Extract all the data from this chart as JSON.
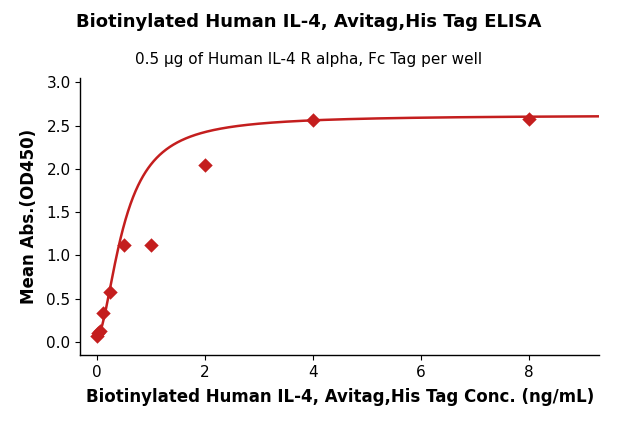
{
  "title": "Biotinylated Human IL-4, Avitag,His Tag ELISA",
  "subtitle": "0.5 μg of Human IL-4 R alpha, Fc Tag per well",
  "xlabel": "Biotinylated Human IL-4, Avitag,His Tag Conc. (ng/mL)",
  "ylabel": "Mean Abs.(OD450)",
  "x_data": [
    0.016,
    0.031,
    0.063,
    0.125,
    0.25,
    0.5,
    1.0,
    2.0,
    4.0,
    8.0
  ],
  "y_data": [
    0.07,
    0.1,
    0.13,
    0.33,
    0.58,
    1.12,
    1.12,
    2.05,
    2.56,
    2.58
  ],
  "xlim": [
    -0.3,
    9.3
  ],
  "ylim": [
    -0.15,
    3.05
  ],
  "xticks": [
    0,
    2,
    4,
    6,
    8
  ],
  "yticks": [
    0.0,
    0.5,
    1.0,
    1.5,
    2.0,
    2.5,
    3.0
  ],
  "color": "#c41e1e",
  "marker": "D",
  "markersize": 6,
  "linewidth": 1.8,
  "title_fontsize": 13,
  "subtitle_fontsize": 11,
  "label_fontsize": 12,
  "tick_fontsize": 11,
  "background_color": "#ffffff"
}
